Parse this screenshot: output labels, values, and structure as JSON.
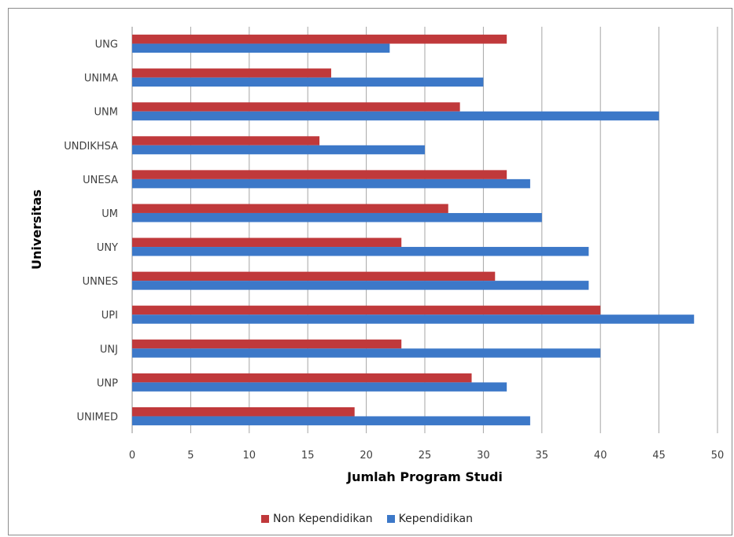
{
  "chart_data": {
    "type": "bar",
    "orientation": "horizontal",
    "title": "",
    "xlabel": "Jumlah Program Studi",
    "ylabel": "Universitas",
    "xlim": [
      0,
      50
    ],
    "xticks": [
      0,
      5,
      10,
      15,
      20,
      25,
      30,
      35,
      40,
      45,
      50
    ],
    "grid": true,
    "legend_position": "bottom",
    "categories": [
      "UNG",
      "UNIMA",
      "UNM",
      "UNDIKHSA",
      "UNESA",
      "UM",
      "UNY",
      "UNNES",
      "UPI",
      "UNJ",
      "UNP",
      "UNIMED"
    ],
    "series": [
      {
        "name": "Non Kependidikan",
        "color": "#c0393b",
        "values": [
          32,
          17,
          28,
          16,
          32,
          27,
          23,
          31,
          40,
          23,
          29,
          19
        ]
      },
      {
        "name": "Kependidikan",
        "color": "#3c78c8",
        "values": [
          22,
          30,
          45,
          25,
          34,
          35,
          39,
          39,
          48,
          40,
          32,
          34
        ]
      }
    ]
  }
}
